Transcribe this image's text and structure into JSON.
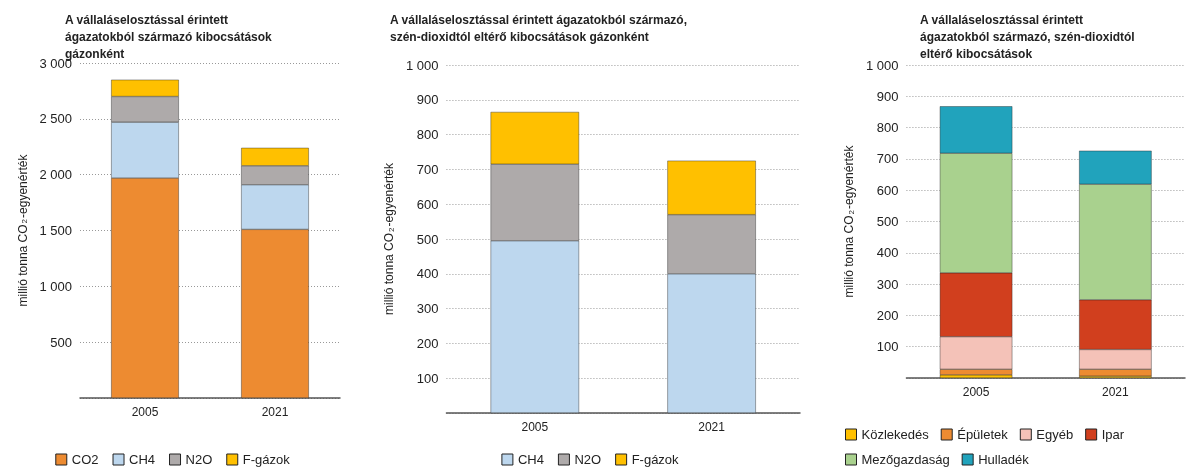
{
  "chart_data": [
    {
      "type": "bar",
      "title": "A vállaláselosztással érintett ágazatokból származó kibocsátások gázonként",
      "ylabel": "millió tonna CO$_{2}$-egyenérték",
      "categories": [
        "2005",
        "2021"
      ],
      "stacked": true,
      "series": [
        {
          "name": "CO2",
          "color": "#ed8b31",
          "values": [
            1970,
            1510
          ]
        },
        {
          "name": "CH4",
          "color": "#bdd7ee",
          "values": [
            500,
            400
          ]
        },
        {
          "name": "N2O",
          "color": "#aeaaaa",
          "values": [
            230,
            170
          ]
        },
        {
          "name": "F-gázok",
          "color": "#ffc000",
          "values": [
            150,
            160
          ]
        }
      ],
      "ylim": [
        0,
        3000
      ],
      "yticks": [
        {
          "value": 500,
          "label": "500"
        },
        {
          "value": 1000,
          "label": "1 000"
        },
        {
          "value": 1500,
          "label": "1 500"
        },
        {
          "value": 2000,
          "label": "2 000"
        },
        {
          "value": 2500,
          "label": "2 500"
        },
        {
          "value": 3000,
          "label": "3 000"
        }
      ],
      "grid": "y",
      "legend": "bottom"
    },
    {
      "type": "bar",
      "title": "A vállaláselosztással érintett ágazatokból származó, szén-dioxidtól eltérő kibocsátások gázonként",
      "ylabel": "millió tonna CO$_{2}$-egyenérték",
      "categories": [
        "2005",
        "2021"
      ],
      "stacked": true,
      "series": [
        {
          "name": "CH4",
          "color": "#bdd7ee",
          "values": [
            495,
            400
          ]
        },
        {
          "name": "N2O",
          "color": "#aeaaaa",
          "values": [
            220,
            170
          ]
        },
        {
          "name": "F-gázok",
          "color": "#ffc000",
          "values": [
            150,
            155
          ]
        }
      ],
      "ylim": [
        0,
        1000
      ],
      "yticks": [
        100,
        200,
        300,
        400,
        500,
        600,
        700,
        800,
        900,
        {
          "value": 1000,
          "label": "1 000"
        }
      ],
      "grid": "y",
      "legend": "bottom"
    },
    {
      "type": "bar",
      "title": "A vállaláselosztással érintett ágazatokból származó, szén-dioxidtól eltérő kibocsátások",
      "ylabel": "millió tonna CO$_{2}$-egyenérték",
      "categories": [
        "2005",
        "2021"
      ],
      "stacked": true,
      "series": [
        {
          "name": "Közlekedés",
          "color": "#ffc000",
          "values": [
            10,
            6
          ]
        },
        {
          "name": "Épületek",
          "color": "#ed8b31",
          "values": [
            18,
            22
          ]
        },
        {
          "name": "Egyéb",
          "color": "#f4c2b8",
          "values": [
            104,
            63
          ]
        },
        {
          "name": "Ipar",
          "color": "#d13f1e",
          "values": [
            204,
            159
          ]
        },
        {
          "name": "Mezőgazdaság",
          "color": "#a9d18e",
          "values": [
            382,
            369
          ]
        },
        {
          "name": "Hulladék",
          "color": "#21a3bc",
          "values": [
            150,
            107
          ]
        }
      ],
      "ylim": [
        0,
        1000
      ],
      "yticks": [
        100,
        200,
        300,
        400,
        500,
        600,
        700,
        800,
        900,
        {
          "value": 1000,
          "label": "1 000"
        }
      ],
      "grid": "y",
      "legend": "bottom"
    }
  ]
}
